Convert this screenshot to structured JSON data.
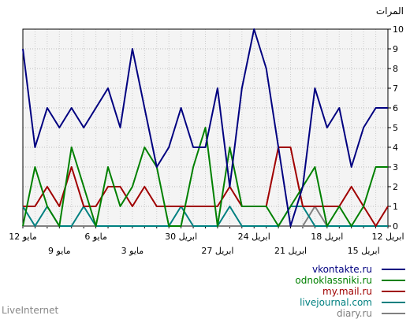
{
  "chart_data": {
    "type": "line",
    "ylabel": "المرات",
    "ylim": [
      0,
      10
    ],
    "yticks": [
      "0",
      "1",
      "2",
      "3",
      "4",
      "5",
      "6",
      "7",
      "8",
      "9",
      "10"
    ],
    "grid": true,
    "x": [
      "12 مايو",
      "11 مايو",
      "10 مايو",
      "9 مايو",
      "8 مايو",
      "7 مايو",
      "6 مايو",
      "5 مايو",
      "4 مايو",
      "3 مايو",
      "2 مايو",
      "1 مايو",
      "30 ابريل",
      "29 ابريل",
      "28 ابريل",
      "27 ابريل",
      "26 ابريل",
      "25 ابريل",
      "24 ابريل",
      "23 ابريل",
      "22 ابريل",
      "21 ابريل",
      "20 ابريل",
      "19 ابريل",
      "18 ابريل",
      "17 ابريل",
      "16 ابريل",
      "15 ابريل",
      "14 ابريل",
      "13 ابريل",
      "12 ابريل"
    ],
    "xtick_labels_top": [
      {
        "index": 0,
        "label": "12 مايو"
      },
      {
        "index": 6,
        "label": "6 مايو"
      },
      {
        "index": 13,
        "label": "30 ابريل"
      },
      {
        "index": 19,
        "label": "24 ابريل"
      },
      {
        "index": 25,
        "label": "18 ابريل"
      },
      {
        "index": 30,
        "label": "12 ابريل"
      }
    ],
    "xtick_labels_bottom": [
      {
        "index": 3,
        "label": "9 مايو"
      },
      {
        "index": 9,
        "label": "3 مايو"
      },
      {
        "index": 16,
        "label": "27 ابريل"
      },
      {
        "index": 22,
        "label": "21 ابريل"
      },
      {
        "index": 28,
        "label": "15 ابريل"
      }
    ],
    "series": [
      {
        "name": "vkontakte.ru",
        "color": "#000080",
        "values": [
          9,
          4,
          6,
          5,
          6,
          5,
          6,
          7,
          5,
          9,
          6,
          3,
          4,
          6,
          4,
          4,
          7,
          2,
          7,
          10,
          8,
          4,
          0,
          2,
          7,
          5,
          6,
          3,
          5,
          6,
          6
        ]
      },
      {
        "name": "odnoklassniki.ru",
        "color": "#008000",
        "values": [
          0,
          3,
          1,
          0,
          4,
          2,
          0,
          3,
          1,
          2,
          4,
          3,
          0,
          0,
          3,
          5,
          0,
          4,
          1,
          1,
          1,
          0,
          1,
          2,
          3,
          0,
          1,
          0,
          1,
          3,
          3
        ]
      },
      {
        "name": "my.mail.ru",
        "color": "#a00000",
        "values": [
          1,
          1,
          2,
          1,
          3,
          1,
          1,
          2,
          2,
          1,
          2,
          1,
          1,
          1,
          1,
          1,
          1,
          2,
          1,
          1,
          1,
          4,
          4,
          1,
          1,
          1,
          1,
          2,
          1,
          0,
          1
        ]
      },
      {
        "name": "livejournal.com",
        "color": "#008080",
        "values": [
          1,
          0,
          1,
          0,
          0,
          1,
          0,
          0,
          0,
          0,
          0,
          0,
          0,
          1,
          0,
          0,
          0,
          1,
          0,
          0,
          0,
          0,
          1,
          1,
          0,
          0,
          0,
          0,
          0,
          0,
          0
        ]
      },
      {
        "name": "diary.ru",
        "color": "#808080",
        "values": [
          0,
          0,
          0,
          0,
          0,
          0,
          0,
          0,
          0,
          0,
          0,
          0,
          0,
          0,
          0,
          0,
          0,
          0,
          0,
          0,
          0,
          0,
          0,
          0,
          1,
          0,
          0,
          0,
          0,
          0,
          0
        ]
      }
    ]
  },
  "footer": {
    "brand": "LiveInternet"
  }
}
